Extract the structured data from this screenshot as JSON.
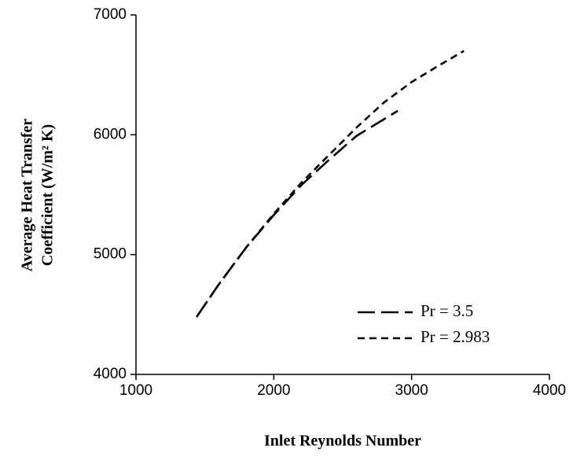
{
  "chart_data": {
    "type": "line",
    "xlabel": "Inlet Reynolds Number",
    "ylabel": [
      "Average Heat Transfer",
      "Coefficient (W/m² K)"
    ],
    "xlim": [
      1000,
      4000
    ],
    "xticks": [
      1000,
      2000,
      3000,
      4000
    ],
    "ylim": [
      4000,
      7000
    ],
    "yticks": [
      4000,
      5000,
      6000,
      7000
    ],
    "grid": false,
    "legend": "lower right",
    "series": [
      {
        "name": "Pr = 3.5",
        "color": "#000000",
        "dash": "long",
        "x": [
          1440,
          1600,
          1800,
          2000,
          2200,
          2400,
          2600,
          2800,
          2900
        ],
        "values": [
          4480,
          4750,
          5060,
          5330,
          5580,
          5790,
          5990,
          6130,
          6200
        ]
      },
      {
        "name": "Pr = 2.983",
        "color": "#000000",
        "dash": "short",
        "x": [
          1440,
          1600,
          1800,
          2000,
          2200,
          2400,
          2600,
          2800,
          3000,
          3200,
          3380
        ],
        "values": [
          4480,
          4750,
          5060,
          5340,
          5600,
          5830,
          6060,
          6270,
          6440,
          6580,
          6700
        ]
      }
    ]
  }
}
